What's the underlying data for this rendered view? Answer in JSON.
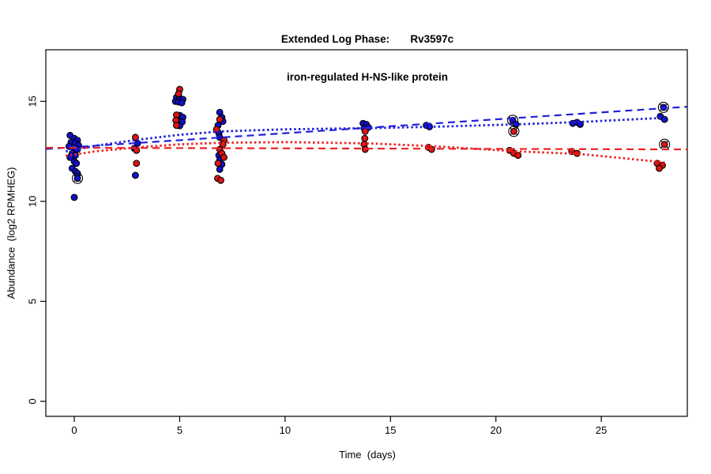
{
  "chart_data": {
    "type": "scatter",
    "title_line1": "Extended Log Phase:       Rv3597c",
    "title_line2": "iron-regulated H-NS-like protein",
    "xlabel": "Time  (days)",
    "ylabel": "Abundance  (log2 RPMHEG)",
    "xlim": [
      -1.35,
      29.08
    ],
    "ylim": [
      -0.75,
      17.58
    ],
    "xticks": [
      0,
      5,
      10,
      15,
      20,
      25
    ],
    "yticks": [
      0,
      5,
      10,
      15
    ],
    "grid": false,
    "legend": "none",
    "colors": {
      "blue": "#1111cc",
      "red": "#dd1414",
      "blue_line": "#2020dd",
      "red_line": "#ee2222",
      "axis": "#000000",
      "ring": "#000000"
    },
    "series": [
      {
        "name": "blue-points",
        "color_key": "blue",
        "points": [
          [
            -0.2,
            13.3
          ],
          [
            0,
            13.15
          ],
          [
            0.15,
            13.05
          ],
          [
            -0.15,
            12.95
          ],
          [
            0.05,
            12.9
          ],
          [
            0.2,
            12.8
          ],
          [
            -0.25,
            12.75
          ],
          [
            0,
            12.7
          ],
          [
            0.15,
            12.6
          ],
          [
            -0.1,
            12.4
          ],
          [
            0.05,
            12.3
          ],
          [
            -0.2,
            12.2
          ],
          [
            0,
            12.0
          ],
          [
            0.1,
            11.9
          ],
          [
            -0.1,
            11.65
          ],
          [
            0.05,
            11.5
          ],
          [
            0.15,
            11.4
          ],
          [
            0.15,
            11.15,
            1
          ],
          [
            0,
            10.2
          ],
          [
            3.0,
            12.9
          ],
          [
            2.85,
            12.65
          ],
          [
            2.9,
            11.3
          ],
          [
            4.85,
            15.2
          ],
          [
            5.0,
            15.15
          ],
          [
            5.15,
            15.1
          ],
          [
            4.8,
            15.0
          ],
          [
            4.95,
            14.97
          ],
          [
            5.1,
            14.93
          ],
          [
            5.0,
            14.3
          ],
          [
            5.15,
            14.2
          ],
          [
            5.0,
            14.0
          ],
          [
            5.12,
            13.97
          ],
          [
            5.0,
            13.78
          ],
          [
            6.9,
            14.45
          ],
          [
            7.0,
            14.2
          ],
          [
            7.05,
            14.0
          ],
          [
            6.82,
            13.8
          ],
          [
            6.86,
            13.4
          ],
          [
            6.9,
            13.2
          ],
          [
            6.86,
            12.3
          ],
          [
            6.9,
            12.05
          ],
          [
            7.0,
            11.85
          ],
          [
            6.9,
            11.6
          ],
          [
            13.7,
            13.9
          ],
          [
            13.85,
            13.85
          ],
          [
            13.95,
            13.7
          ],
          [
            13.75,
            13.65
          ],
          [
            16.7,
            13.8
          ],
          [
            16.85,
            13.73
          ],
          [
            20.8,
            14.05,
            1
          ],
          [
            20.95,
            13.85
          ],
          [
            23.65,
            13.9
          ],
          [
            23.85,
            13.95
          ],
          [
            24.0,
            13.85
          ],
          [
            27.95,
            14.7,
            1
          ],
          [
            27.8,
            14.25
          ],
          [
            28.0,
            14.1
          ]
        ]
      },
      {
        "name": "red-points",
        "color_key": "red",
        "points": [
          [
            2.9,
            13.2
          ],
          [
            2.95,
            12.55
          ],
          [
            2.95,
            11.9
          ],
          [
            5.0,
            15.6
          ],
          [
            4.95,
            15.38
          ],
          [
            4.85,
            14.32
          ],
          [
            4.82,
            14.05
          ],
          [
            4.85,
            13.8
          ],
          [
            6.9,
            14.1
          ],
          [
            6.75,
            13.6
          ],
          [
            7.1,
            13.05
          ],
          [
            7.05,
            12.85
          ],
          [
            6.9,
            12.6
          ],
          [
            7.0,
            12.4
          ],
          [
            7.1,
            12.2
          ],
          [
            6.82,
            11.9
          ],
          [
            6.8,
            11.15
          ],
          [
            6.95,
            11.05
          ],
          [
            13.8,
            13.5
          ],
          [
            13.78,
            13.15
          ],
          [
            13.75,
            12.85
          ],
          [
            13.8,
            12.6
          ],
          [
            16.8,
            12.7
          ],
          [
            16.95,
            12.6
          ],
          [
            20.85,
            13.5,
            1
          ],
          [
            20.65,
            12.55
          ],
          [
            20.85,
            12.4
          ],
          [
            21.05,
            12.3
          ],
          [
            23.6,
            12.5
          ],
          [
            23.85,
            12.4
          ],
          [
            28.0,
            12.85,
            1
          ],
          [
            27.65,
            11.9
          ],
          [
            27.9,
            11.8
          ],
          [
            27.75,
            11.65
          ]
        ]
      }
    ],
    "lines": [
      {
        "name": "blue-linear-fit-dashed",
        "color_key": "blue_line",
        "dash": "long",
        "points": [
          [
            -1.35,
            12.62
          ],
          [
            29.08,
            14.73
          ]
        ]
      },
      {
        "name": "red-linear-fit-dashed",
        "color_key": "red_line",
        "dash": "long",
        "points": [
          [
            -1.35,
            12.68
          ],
          [
            29.08,
            12.6
          ]
        ]
      },
      {
        "name": "blue-smooth-fit-dotted",
        "color_key": "blue_line",
        "dash": "dot",
        "points": [
          [
            -0.4,
            12.5
          ],
          [
            1,
            12.78
          ],
          [
            3,
            13.08
          ],
          [
            5,
            13.33
          ],
          [
            7,
            13.5
          ],
          [
            10,
            13.6
          ],
          [
            14,
            13.66
          ],
          [
            17,
            13.73
          ],
          [
            21,
            13.85
          ],
          [
            24,
            13.97
          ],
          [
            28,
            14.18
          ]
        ]
      },
      {
        "name": "red-smooth-fit-dotted",
        "color_key": "red_line",
        "dash": "dot",
        "points": [
          [
            -0.4,
            12.28
          ],
          [
            1,
            12.5
          ],
          [
            3,
            12.7
          ],
          [
            5,
            12.85
          ],
          [
            7,
            12.93
          ],
          [
            10,
            12.96
          ],
          [
            14,
            12.9
          ],
          [
            17,
            12.76
          ],
          [
            21,
            12.5
          ],
          [
            24,
            12.37
          ],
          [
            28,
            11.95
          ]
        ]
      }
    ]
  }
}
